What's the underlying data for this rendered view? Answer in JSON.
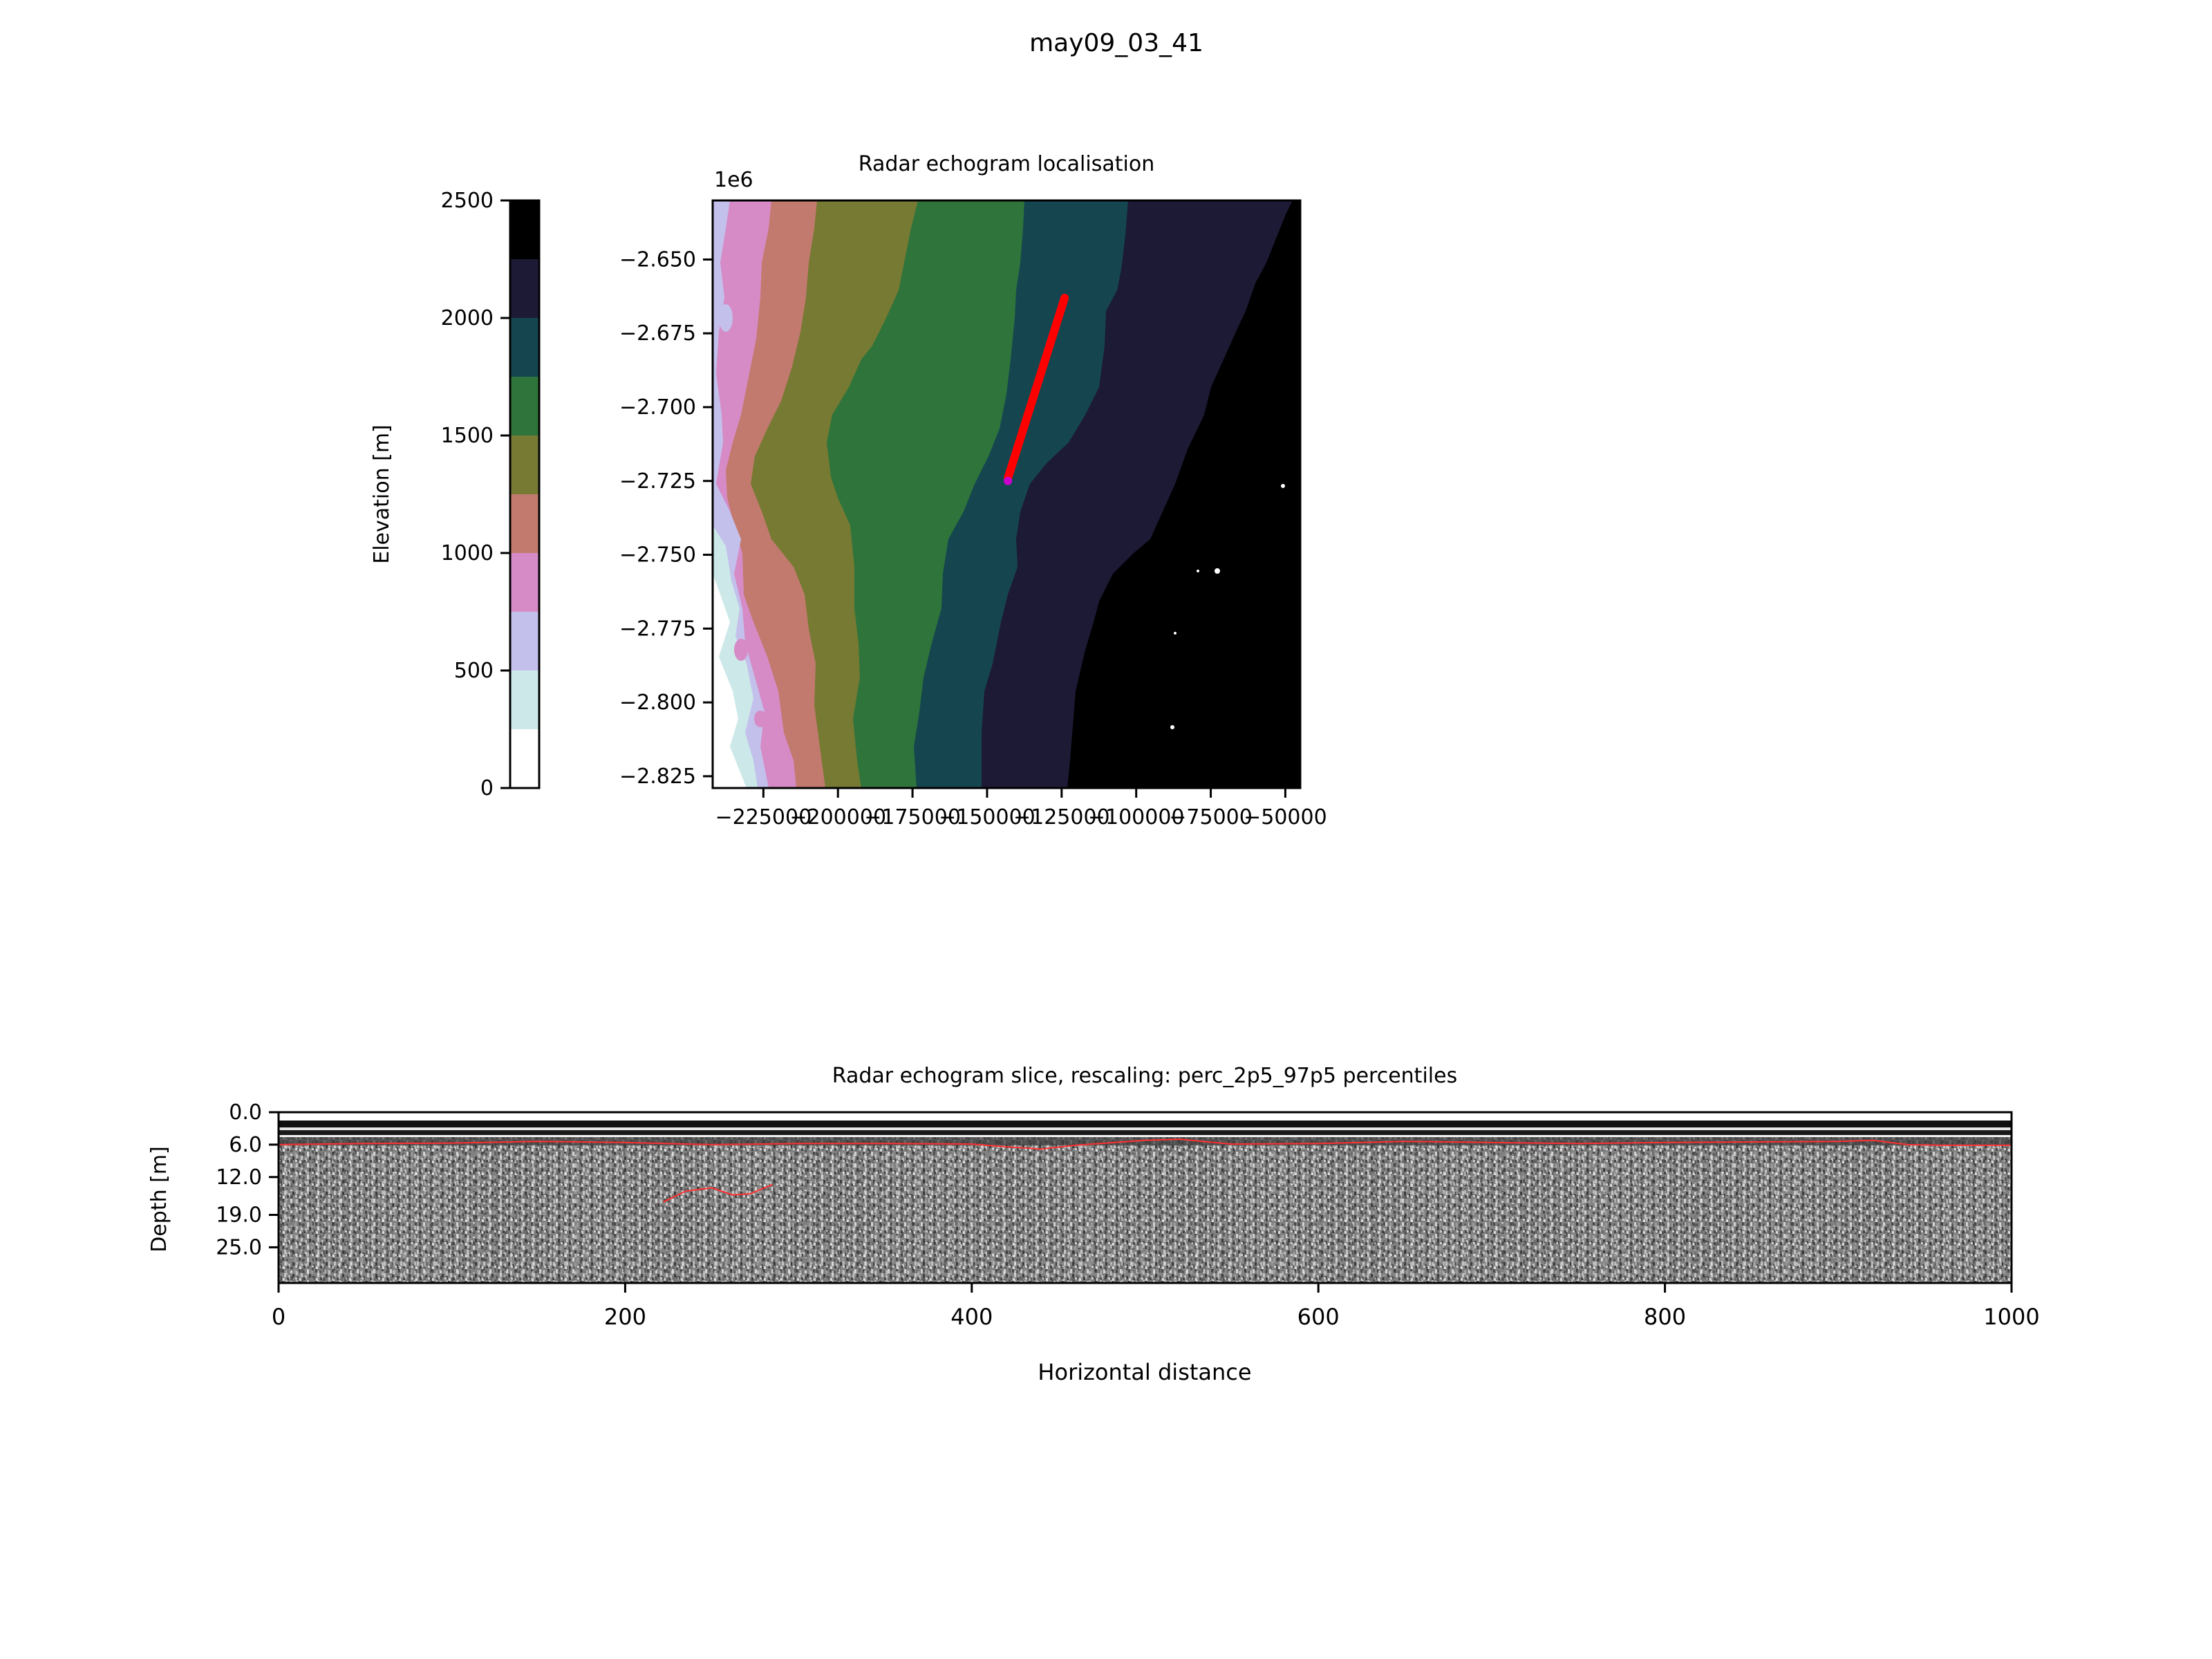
{
  "figure": {
    "suptitle": "may09_03_41"
  },
  "chart_data": [
    {
      "type": "heatmap",
      "name": "elevation-colorbar",
      "ylabel": "Elevation [m]",
      "ylim": [
        0,
        2500
      ],
      "ticks": [
        0,
        500,
        1000,
        1500,
        2000,
        2500
      ],
      "tick_labels": [
        "0",
        "500",
        "1000",
        "1500",
        "2000",
        "2500"
      ],
      "levels": [
        0,
        250,
        500,
        750,
        1000,
        1250,
        1500,
        1750,
        2000,
        2250,
        2500
      ],
      "colors": [
        "#ffffff",
        "#cce8e8",
        "#c3c0ec",
        "#d68bc6",
        "#c27a6e",
        "#767a33",
        "#2f743a",
        "#154650",
        "#1d1a36",
        "#000000"
      ]
    },
    {
      "type": "heatmap",
      "name": "localisation-map",
      "title": "Radar echogram localisation",
      "y_offset_label": "1e6",
      "xlim": [
        -242000,
        -45000
      ],
      "ylim": [
        -2829000,
        -2630000
      ],
      "xticks": [
        -225000,
        -200000,
        -175000,
        -150000,
        -125000,
        -100000,
        -75000,
        -50000
      ],
      "xtick_labels": [
        "−225000",
        "−200000",
        "−175000",
        "−150000",
        "−125000",
        "−100000",
        "−75000",
        "−50000"
      ],
      "yticks": [
        -2.65,
        -2.675,
        -2.7,
        -2.725,
        -2.75,
        -2.775,
        -2.8,
        -2.825
      ],
      "ytick_labels": [
        "−2.650",
        "−2.675",
        "−2.700",
        "−2.725",
        "−2.750",
        "−2.775",
        "−2.800",
        "−2.825"
      ],
      "track": {
        "color": "#ff0000",
        "x": [
          -124000,
          -143000
        ],
        "y": [
          -2663000,
          -2724000
        ]
      },
      "track_start_marker": {
        "color": "#cc00cc",
        "x": -143000,
        "y": -2725000
      }
    },
    {
      "type": "heatmap",
      "name": "echogram-slice",
      "title": "Radar echogram slice, rescaling: perc_2p5_97p5 percentiles",
      "xlabel": "Horizontal distance",
      "ylabel": "Depth [m]",
      "xlim": [
        0,
        1000
      ],
      "ylim": [
        31.6,
        0
      ],
      "xticks": [
        0,
        200,
        400,
        600,
        800,
        1000
      ],
      "xtick_labels": [
        "0",
        "200",
        "400",
        "600",
        "800",
        "1000"
      ],
      "yticks": [
        0,
        6,
        12,
        19,
        25
      ],
      "ytick_labels": [
        "0.0",
        "6.0",
        "12.0",
        "19.0",
        "25.0"
      ],
      "reflector_color": "#ff3030",
      "surface_layer": {
        "x": [
          0,
          50,
          100,
          150,
          200,
          250,
          300,
          350,
          400,
          420,
          440,
          460,
          500,
          520,
          550,
          600,
          650,
          700,
          750,
          800,
          850,
          900,
          920,
          940,
          960,
          1000
        ],
        "depth": [
          6.0,
          5.8,
          5.7,
          5.4,
          5.6,
          6.0,
          5.8,
          5.8,
          5.9,
          6.4,
          6.8,
          6.1,
          5.2,
          5.0,
          5.9,
          5.8,
          5.4,
          5.6,
          5.8,
          5.6,
          5.5,
          5.4,
          5.2,
          6.0,
          6.1,
          6.1
        ]
      },
      "deep_layer": {
        "x": [
          222,
          235,
          250,
          262,
          272,
          285
        ],
        "depth": [
          16.6,
          14.6,
          14.0,
          15.3,
          15.1,
          13.4
        ]
      }
    }
  ]
}
